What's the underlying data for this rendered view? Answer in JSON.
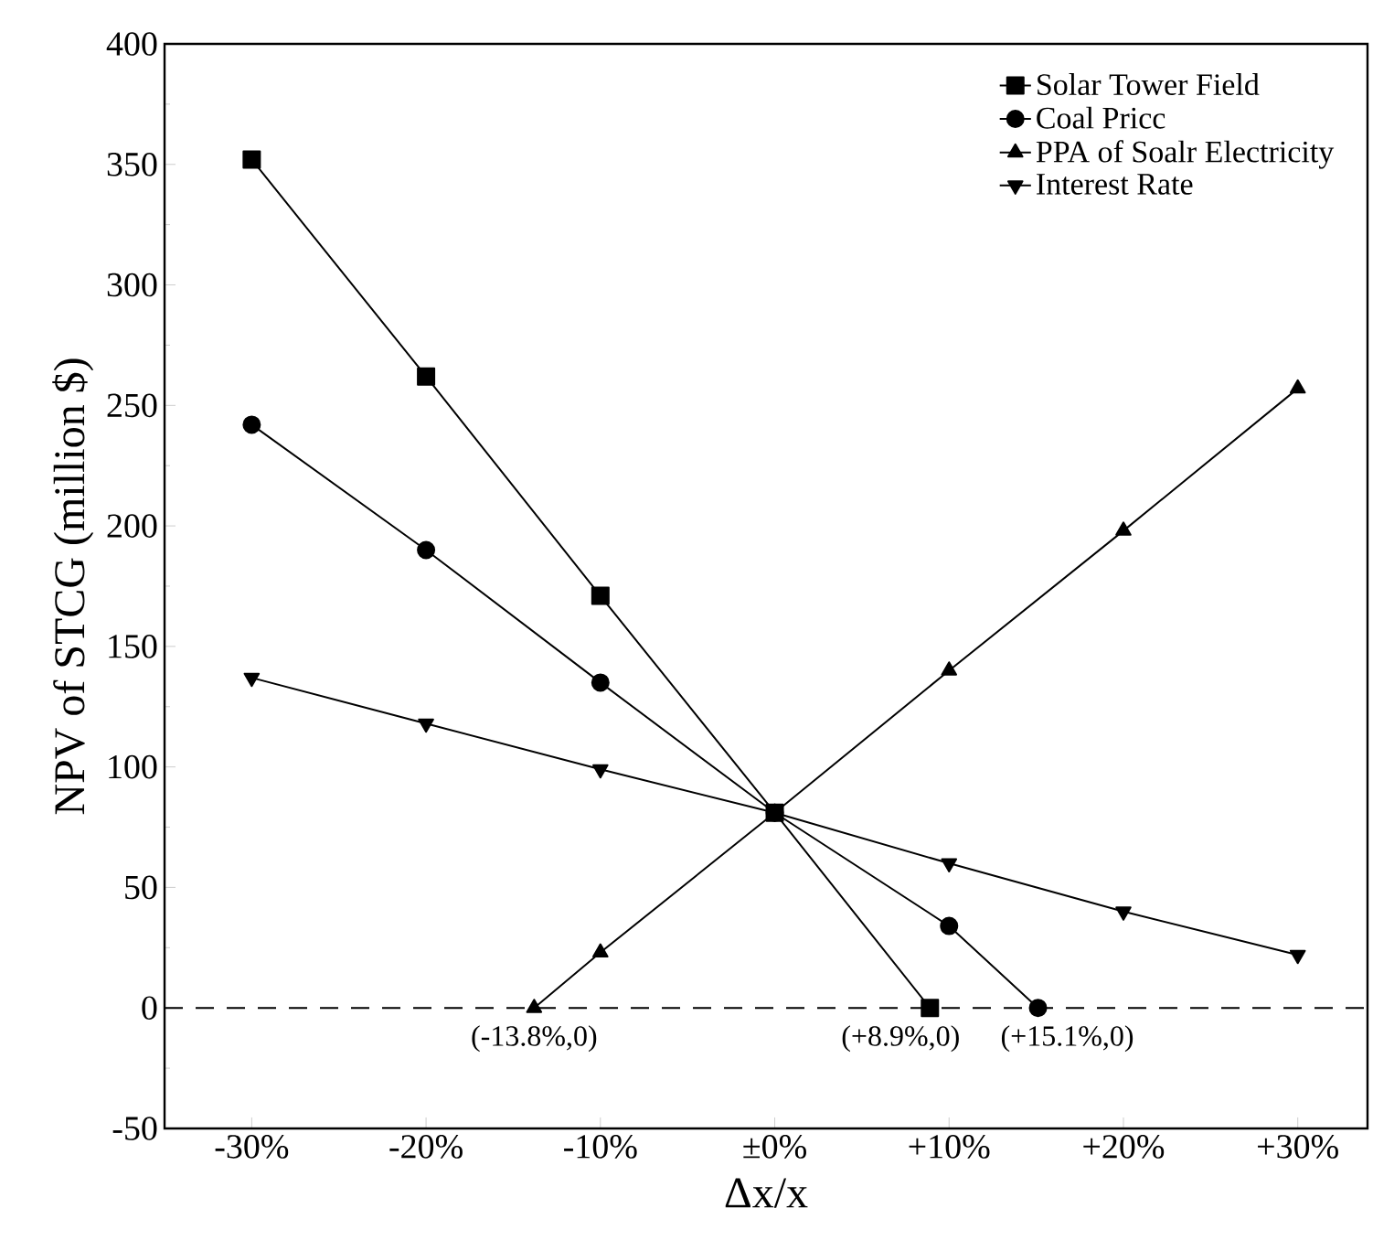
{
  "chart_data": {
    "type": "line",
    "xlabel": "Δx/x",
    "ylabel": "NPV of STCG (million $)",
    "xlim": [
      -35,
      34
    ],
    "ylim": [
      -50,
      400
    ],
    "xticks": [
      {
        "value": -30,
        "label": "-30%"
      },
      {
        "value": -20,
        "label": "-20%"
      },
      {
        "value": -10,
        "label": "-10%"
      },
      {
        "value": 0,
        "label": "±0%"
      },
      {
        "value": 10,
        "label": "+10%"
      },
      {
        "value": 20,
        "label": "+20%"
      },
      {
        "value": 30,
        "label": "+30%"
      }
    ],
    "yticks": [
      -50,
      0,
      50,
      100,
      150,
      200,
      250,
      300,
      350,
      400
    ],
    "legend": "top right",
    "grid": false,
    "series": [
      {
        "name": "Solar Tower Field",
        "color": "#000000",
        "marker": "square",
        "x": [
          -30,
          -20,
          -10,
          0,
          8.9
        ],
        "values": [
          352,
          262,
          171,
          81,
          0
        ]
      },
      {
        "name": "Coal Pricc",
        "color": "#000000",
        "marker": "circle",
        "x": [
          -30,
          -20,
          -10,
          0,
          10,
          15.1
        ],
        "values": [
          242,
          190,
          135,
          81,
          34,
          0
        ]
      },
      {
        "name": "PPA of Soalr Electricity",
        "color": "#000000",
        "marker": "triangle",
        "x": [
          -13.8,
          -10,
          0,
          10,
          20,
          30
        ],
        "values": [
          0,
          23,
          81,
          140,
          198,
          257
        ]
      },
      {
        "name": "Interest Rate",
        "color": "#000000",
        "marker": "triangle-down",
        "x": [
          -30,
          -20,
          -10,
          0,
          10,
          20,
          30
        ],
        "values": [
          137,
          118,
          99,
          81,
          60,
          40,
          22
        ]
      }
    ],
    "ref_lines": [
      {
        "axis": "y",
        "value": 0,
        "line_style": "dashed",
        "color": "#000000"
      }
    ],
    "annotations": [
      {
        "text": "(-13.8%,0)",
        "x": -13.8,
        "y": 0
      },
      {
        "text": "(+8.9%,0)",
        "x": 8.9,
        "y": 0
      },
      {
        "text": "(+15.1%,0)",
        "x": 15.1,
        "y": 0
      }
    ]
  }
}
